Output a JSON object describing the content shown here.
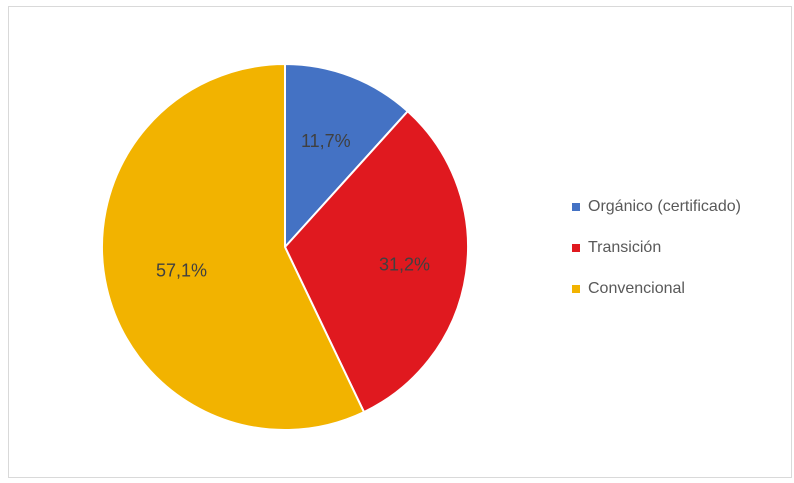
{
  "chart_data": {
    "type": "pie",
    "title": "",
    "start_angle_deg": 0,
    "direction": "clockwise",
    "categories": [
      "Orgánico (certificado)",
      "Transición",
      "Convencional"
    ],
    "values": [
      11.7,
      31.2,
      57.1
    ],
    "value_labels": [
      "11,7%",
      "31,2%",
      "57,1%"
    ],
    "colors": [
      "#4472c4",
      "#e0191f",
      "#f2b300"
    ],
    "legend": {
      "position": "right",
      "items": [
        "Orgánico (certificado)",
        "Transición",
        "Convencional"
      ]
    }
  }
}
